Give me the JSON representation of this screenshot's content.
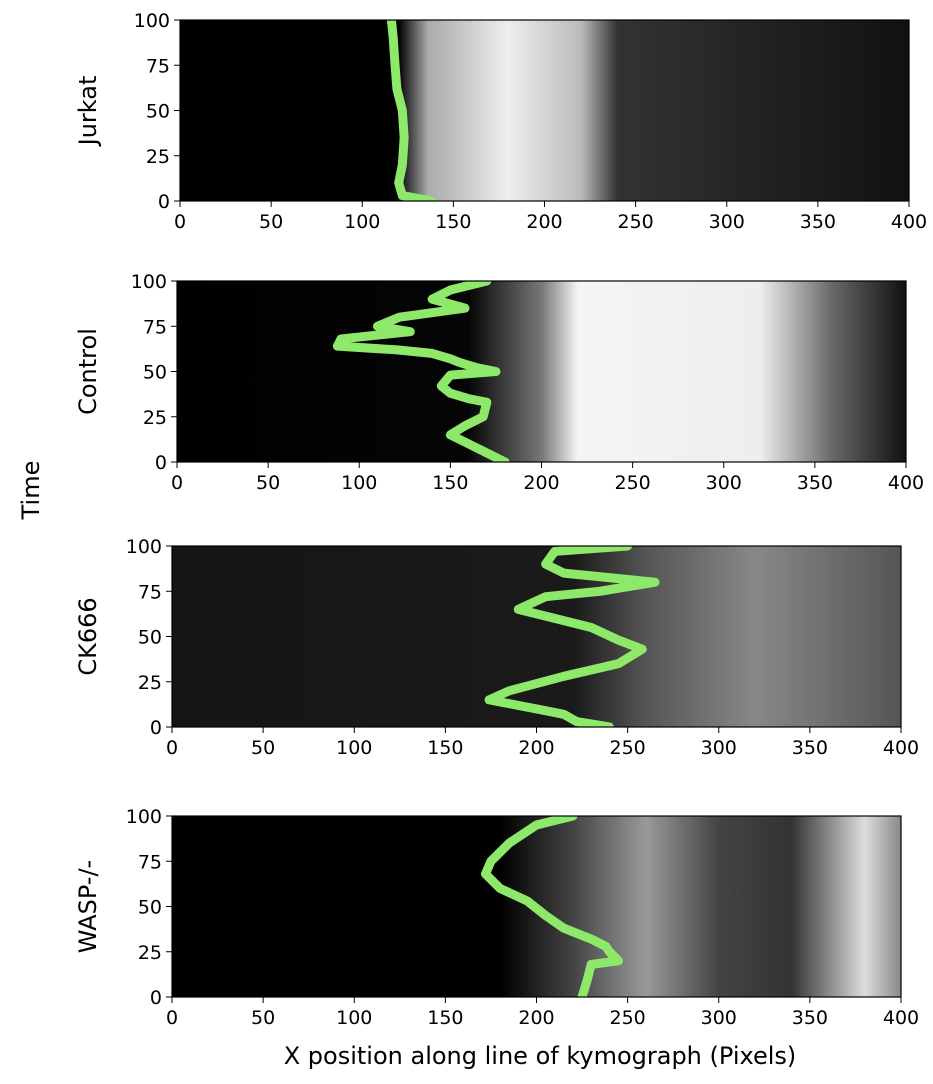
{
  "figure": {
    "ylabel": "Time",
    "xlabel": "X position along line of kymograph (Pixels)"
  },
  "chart_data": [
    {
      "type": "line",
      "ylabel": "Jurkat",
      "x": [
        138,
        122,
        120,
        122,
        123,
        122,
        119,
        118,
        117,
        116
      ],
      "series": [
        {
          "color": "#8ee86a",
          "values": [
            0,
            3,
            10,
            20,
            35,
            50,
            62,
            75,
            90,
            100
          ]
        }
      ],
      "xlim": [
        0,
        400
      ],
      "ylim": [
        0,
        100
      ],
      "xticks": [
        0,
        50,
        100,
        150,
        200,
        250,
        300,
        350,
        400
      ],
      "yticks": [
        0,
        25,
        50,
        75,
        100
      ]
    },
    {
      "type": "line",
      "ylabel": "Control",
      "x": [
        170,
        150,
        140,
        158,
        122,
        110,
        128,
        90,
        88,
        120,
        140,
        150,
        155,
        165,
        175,
        150,
        145,
        150,
        160,
        170,
        168,
        158,
        150,
        160,
        170,
        180
      ],
      "series": [
        {
          "color": "#8ee86a",
          "values": [
            100,
            95,
            90,
            85,
            80,
            75,
            72,
            68,
            64,
            62,
            60,
            57,
            55,
            52,
            50,
            48,
            42,
            38,
            35,
            33,
            25,
            20,
            15,
            10,
            5,
            0
          ]
        }
      ],
      "xlim": [
        0,
        400
      ],
      "ylim": [
        0,
        100
      ],
      "xticks": [
        0,
        50,
        100,
        150,
        200,
        250,
        300,
        350,
        400
      ],
      "yticks": [
        0,
        25,
        50,
        75,
        100
      ]
    },
    {
      "type": "line",
      "ylabel": "CK666",
      "x": [
        250,
        210,
        205,
        215,
        265,
        235,
        205,
        190,
        210,
        230,
        245,
        258,
        245,
        215,
        185,
        174,
        200,
        215,
        222,
        240
      ],
      "series": [
        {
          "color": "#8ee86a",
          "values": [
            100,
            97,
            90,
            85,
            80,
            75,
            72,
            65,
            60,
            55,
            48,
            43,
            35,
            28,
            20,
            15,
            10,
            7,
            3,
            0
          ]
        }
      ],
      "xlim": [
        0,
        400
      ],
      "ylim": [
        0,
        100
      ],
      "xticks": [
        0,
        50,
        100,
        150,
        200,
        250,
        300,
        350,
        400
      ],
      "yticks": [
        0,
        25,
        50,
        75,
        100
      ]
    },
    {
      "type": "line",
      "ylabel": "WASP-/-",
      "x": [
        220,
        200,
        185,
        175,
        172,
        180,
        195,
        205,
        215,
        230,
        238,
        240,
        245,
        230,
        228,
        225
      ],
      "series": [
        {
          "color": "#8ee86a",
          "values": [
            100,
            95,
            85,
            75,
            68,
            60,
            53,
            45,
            38,
            32,
            28,
            25,
            20,
            18,
            10,
            0
          ]
        }
      ],
      "xlim": [
        0,
        400
      ],
      "ylim": [
        0,
        100
      ],
      "xticks": [
        0,
        50,
        100,
        150,
        200,
        250,
        300,
        350,
        400
      ],
      "yticks": [
        0,
        25,
        50,
        75,
        100
      ]
    }
  ]
}
